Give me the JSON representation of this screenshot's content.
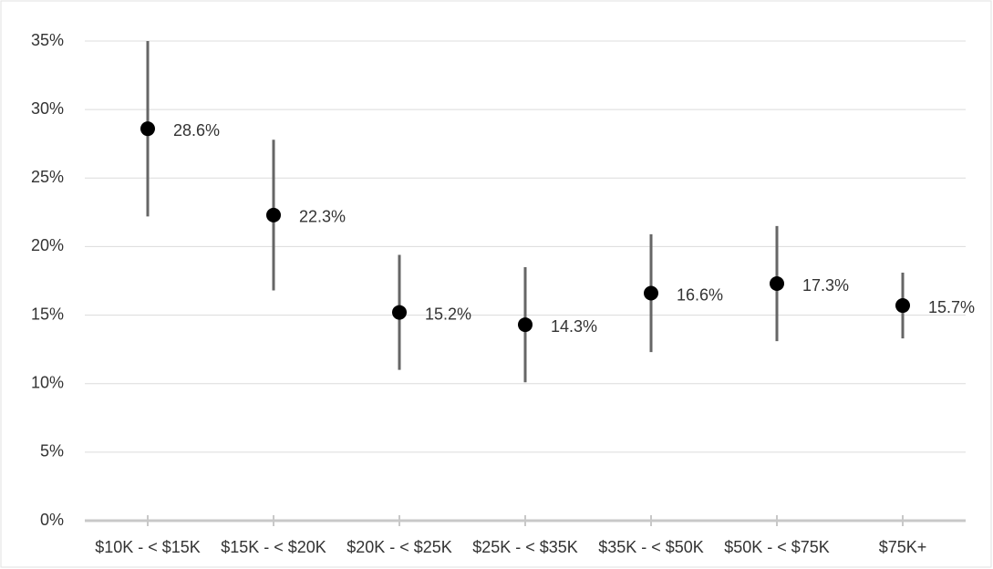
{
  "chart_data": {
    "type": "errorbar",
    "categories": [
      "$10K - < $15K",
      "$15K - < $20K",
      "$20K - < $25K",
      "$25K - < $35K",
      "$35K - < $50K",
      "$50K - < $75K",
      "$75K+"
    ],
    "values": [
      28.6,
      22.3,
      15.2,
      14.3,
      16.6,
      17.3,
      15.7
    ],
    "value_labels": [
      "28.6%",
      "22.3%",
      "15.2%",
      "14.3%",
      "16.6%",
      "17.3%",
      "15.7%"
    ],
    "errors": [
      6.4,
      5.5,
      4.2,
      4.2,
      4.3,
      4.2,
      2.4
    ],
    "color": "#000000",
    "error_color": "#666666",
    "ylim": [
      0,
      35
    ],
    "yticks": [
      {
        "value": 0,
        "label": "0%"
      },
      {
        "value": 5,
        "label": "5%"
      },
      {
        "value": 10,
        "label": "10%"
      },
      {
        "value": 15,
        "label": "15%"
      },
      {
        "value": 20,
        "label": "20%"
      },
      {
        "value": 25,
        "label": "25%"
      },
      {
        "value": 30,
        "label": "30%"
      },
      {
        "value": 35,
        "label": "35%"
      }
    ],
    "grid": true
  }
}
